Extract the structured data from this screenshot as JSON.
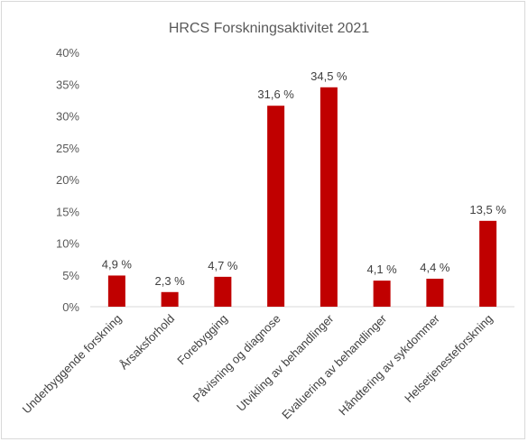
{
  "chart_data": {
    "type": "bar",
    "title": "HRCS Forskningsaktivitet 2021",
    "xlabel": "",
    "ylabel": "",
    "ylim": [
      0,
      40
    ],
    "yticks": [
      0,
      5,
      10,
      15,
      20,
      25,
      30,
      35,
      40
    ],
    "ytick_labels": [
      "0%",
      "5%",
      "10%",
      "15%",
      "20%",
      "25%",
      "30%",
      "35%",
      "40%"
    ],
    "categories": [
      "Underbyggende forskning",
      "Årsaksforhold",
      "Forebygging",
      "Påvisning og diagnose",
      "Utvikling av behandlinger",
      "Evaluering av behandlinger",
      "Håndtering av sykdommer",
      "Helsetjenesteforskning"
    ],
    "values": [
      4.9,
      2.3,
      4.7,
      31.6,
      34.5,
      4.1,
      4.4,
      13.5
    ],
    "data_labels": [
      "4,9 %",
      "2,3 %",
      "4,7 %",
      "31,6 %",
      "34,5 %",
      "4,1 %",
      "4,4 %",
      "13,5 %"
    ],
    "bar_color": "#c00000",
    "grid": false,
    "legend": "none"
  }
}
